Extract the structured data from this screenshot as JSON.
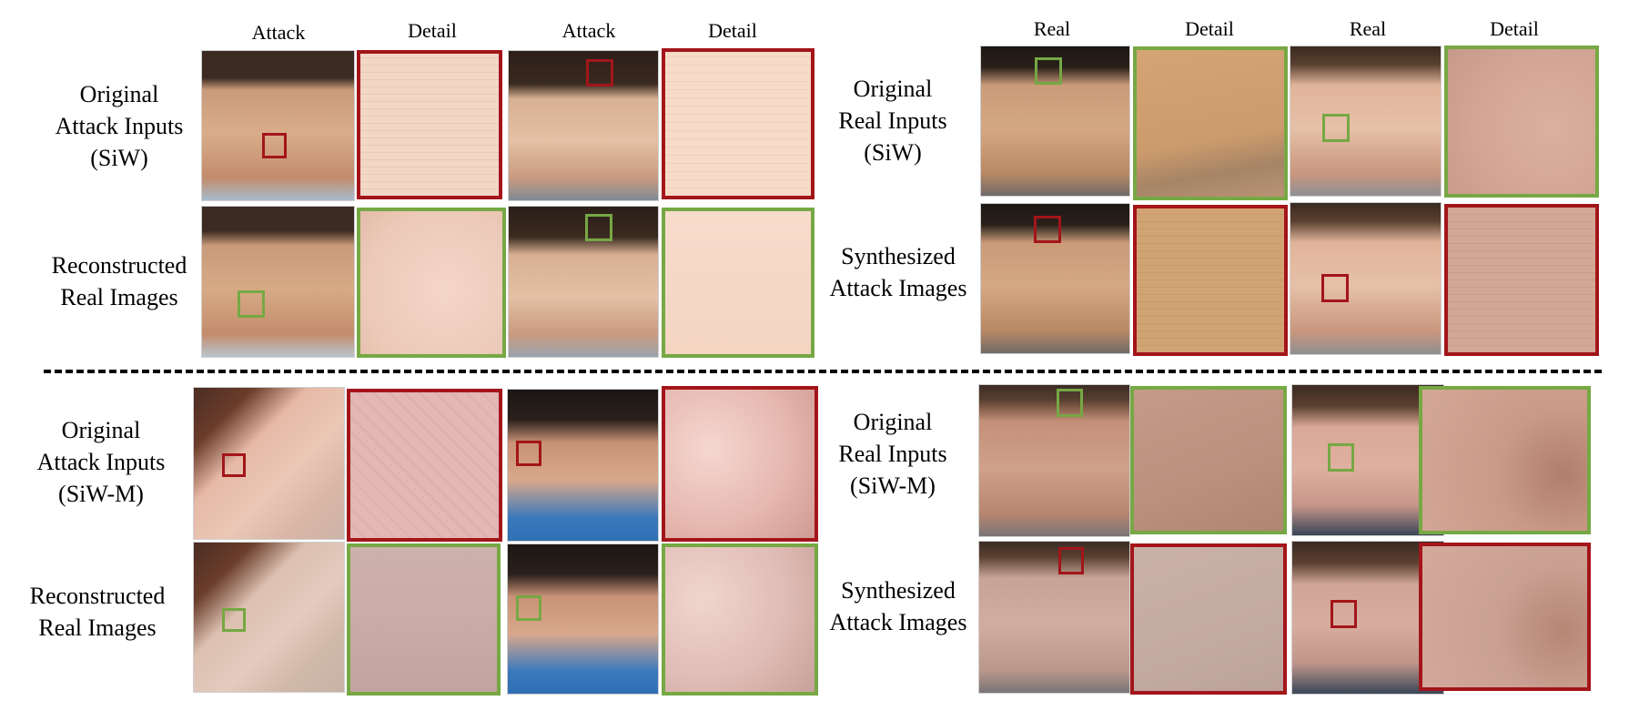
{
  "columns": {
    "left": [
      "Attack",
      "Detail",
      "Attack",
      "Detail"
    ],
    "right": [
      "Real",
      "Detail",
      "Real",
      "Detail"
    ]
  },
  "row_labels": {
    "siw_original_attack": [
      "Original",
      "Attack Inputs",
      "(SiW)"
    ],
    "siw_reconstructed_real": [
      "Reconstructed",
      "Real Images"
    ],
    "siw_original_real": [
      "Original",
      "Real Inputs",
      "(SiW)"
    ],
    "siw_synthesized_attack": [
      "Synthesized",
      "Attack Images"
    ],
    "siwm_original_attack": [
      "Original",
      "Attack Inputs",
      "(SiW-M)"
    ],
    "siwm_reconstructed_real": [
      "Reconstructed",
      "Real Images"
    ],
    "siwm_original_real": [
      "Original",
      "Real Inputs",
      "(SiW-M)"
    ],
    "siwm_synthesized_attack": [
      "Synthesized",
      "Attack Images"
    ]
  },
  "colors": {
    "attack_box": "#a3151a",
    "real_box": "#76a844"
  },
  "icons": [
    "face-photo",
    "detail-crop",
    "region-box"
  ]
}
